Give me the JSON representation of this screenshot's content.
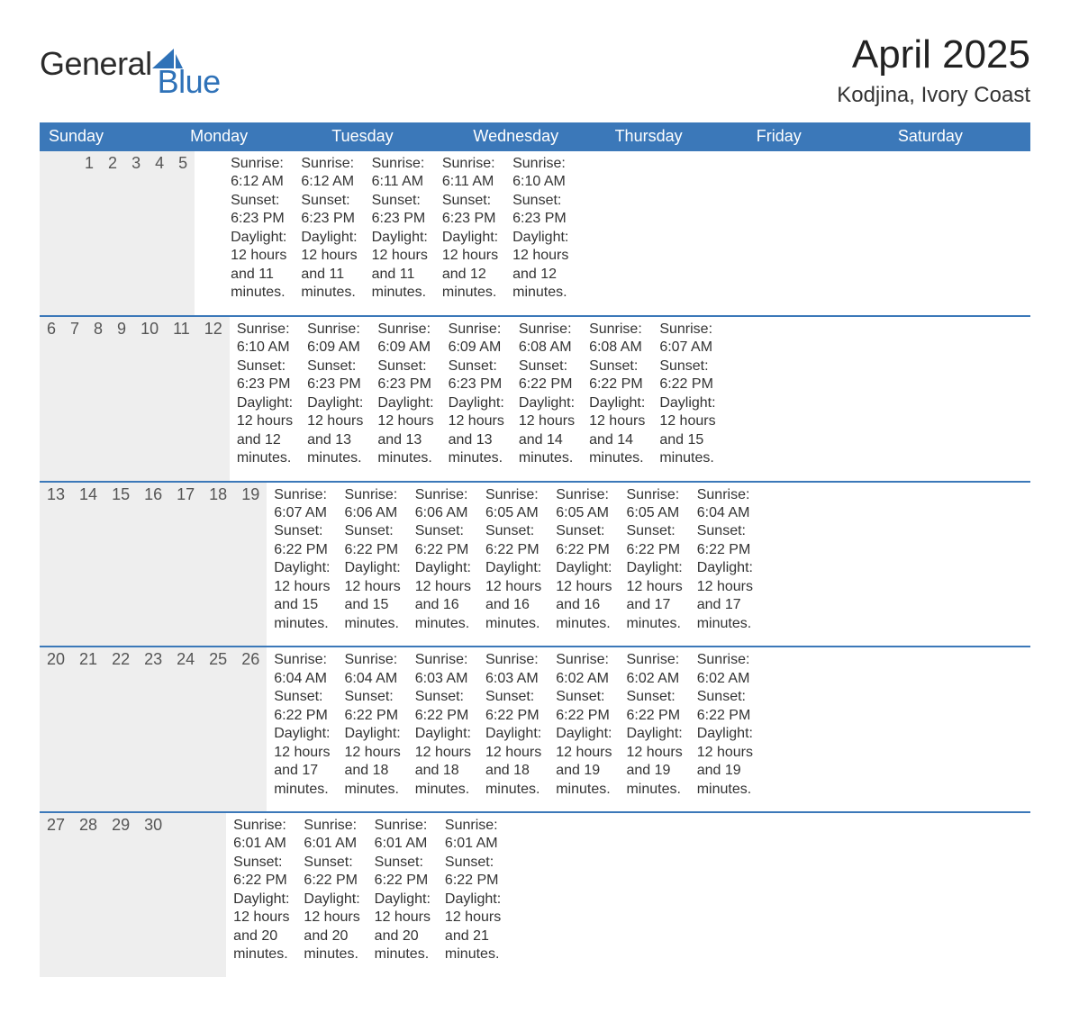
{
  "logo": {
    "part1": "General",
    "part2": "Blue"
  },
  "title": "April 2025",
  "subtitle": "Kodjina, Ivory Coast",
  "colors": {
    "header_blue": "#3b78b9",
    "logo_blue": "#2f72b8",
    "daynum_bg": "#eeeeee",
    "row_sep": "#3b78b9",
    "text": "#333333"
  },
  "weekdays": [
    "Sunday",
    "Monday",
    "Tuesday",
    "Wednesday",
    "Thursday",
    "Friday",
    "Saturday"
  ],
  "weeks": [
    [
      null,
      null,
      {
        "n": "1",
        "sunrise": "Sunrise: 6:12 AM",
        "sunset": "Sunset: 6:23 PM",
        "daylight": "Daylight: 12 hours and 11 minutes."
      },
      {
        "n": "2",
        "sunrise": "Sunrise: 6:12 AM",
        "sunset": "Sunset: 6:23 PM",
        "daylight": "Daylight: 12 hours and 11 minutes."
      },
      {
        "n": "3",
        "sunrise": "Sunrise: 6:11 AM",
        "sunset": "Sunset: 6:23 PM",
        "daylight": "Daylight: 12 hours and 11 minutes."
      },
      {
        "n": "4",
        "sunrise": "Sunrise: 6:11 AM",
        "sunset": "Sunset: 6:23 PM",
        "daylight": "Daylight: 12 hours and 12 minutes."
      },
      {
        "n": "5",
        "sunrise": "Sunrise: 6:10 AM",
        "sunset": "Sunset: 6:23 PM",
        "daylight": "Daylight: 12 hours and 12 minutes."
      }
    ],
    [
      {
        "n": "6",
        "sunrise": "Sunrise: 6:10 AM",
        "sunset": "Sunset: 6:23 PM",
        "daylight": "Daylight: 12 hours and 12 minutes."
      },
      {
        "n": "7",
        "sunrise": "Sunrise: 6:09 AM",
        "sunset": "Sunset: 6:23 PM",
        "daylight": "Daylight: 12 hours and 13 minutes."
      },
      {
        "n": "8",
        "sunrise": "Sunrise: 6:09 AM",
        "sunset": "Sunset: 6:23 PM",
        "daylight": "Daylight: 12 hours and 13 minutes."
      },
      {
        "n": "9",
        "sunrise": "Sunrise: 6:09 AM",
        "sunset": "Sunset: 6:23 PM",
        "daylight": "Daylight: 12 hours and 13 minutes."
      },
      {
        "n": "10",
        "sunrise": "Sunrise: 6:08 AM",
        "sunset": "Sunset: 6:22 PM",
        "daylight": "Daylight: 12 hours and 14 minutes."
      },
      {
        "n": "11",
        "sunrise": "Sunrise: 6:08 AM",
        "sunset": "Sunset: 6:22 PM",
        "daylight": "Daylight: 12 hours and 14 minutes."
      },
      {
        "n": "12",
        "sunrise": "Sunrise: 6:07 AM",
        "sunset": "Sunset: 6:22 PM",
        "daylight": "Daylight: 12 hours and 15 minutes."
      }
    ],
    [
      {
        "n": "13",
        "sunrise": "Sunrise: 6:07 AM",
        "sunset": "Sunset: 6:22 PM",
        "daylight": "Daylight: 12 hours and 15 minutes."
      },
      {
        "n": "14",
        "sunrise": "Sunrise: 6:06 AM",
        "sunset": "Sunset: 6:22 PM",
        "daylight": "Daylight: 12 hours and 15 minutes."
      },
      {
        "n": "15",
        "sunrise": "Sunrise: 6:06 AM",
        "sunset": "Sunset: 6:22 PM",
        "daylight": "Daylight: 12 hours and 16 minutes."
      },
      {
        "n": "16",
        "sunrise": "Sunrise: 6:05 AM",
        "sunset": "Sunset: 6:22 PM",
        "daylight": "Daylight: 12 hours and 16 minutes."
      },
      {
        "n": "17",
        "sunrise": "Sunrise: 6:05 AM",
        "sunset": "Sunset: 6:22 PM",
        "daylight": "Daylight: 12 hours and 16 minutes."
      },
      {
        "n": "18",
        "sunrise": "Sunrise: 6:05 AM",
        "sunset": "Sunset: 6:22 PM",
        "daylight": "Daylight: 12 hours and 17 minutes."
      },
      {
        "n": "19",
        "sunrise": "Sunrise: 6:04 AM",
        "sunset": "Sunset: 6:22 PM",
        "daylight": "Daylight: 12 hours and 17 minutes."
      }
    ],
    [
      {
        "n": "20",
        "sunrise": "Sunrise: 6:04 AM",
        "sunset": "Sunset: 6:22 PM",
        "daylight": "Daylight: 12 hours and 17 minutes."
      },
      {
        "n": "21",
        "sunrise": "Sunrise: 6:04 AM",
        "sunset": "Sunset: 6:22 PM",
        "daylight": "Daylight: 12 hours and 18 minutes."
      },
      {
        "n": "22",
        "sunrise": "Sunrise: 6:03 AM",
        "sunset": "Sunset: 6:22 PM",
        "daylight": "Daylight: 12 hours and 18 minutes."
      },
      {
        "n": "23",
        "sunrise": "Sunrise: 6:03 AM",
        "sunset": "Sunset: 6:22 PM",
        "daylight": "Daylight: 12 hours and 18 minutes."
      },
      {
        "n": "24",
        "sunrise": "Sunrise: 6:02 AM",
        "sunset": "Sunset: 6:22 PM",
        "daylight": "Daylight: 12 hours and 19 minutes."
      },
      {
        "n": "25",
        "sunrise": "Sunrise: 6:02 AM",
        "sunset": "Sunset: 6:22 PM",
        "daylight": "Daylight: 12 hours and 19 minutes."
      },
      {
        "n": "26",
        "sunrise": "Sunrise: 6:02 AM",
        "sunset": "Sunset: 6:22 PM",
        "daylight": "Daylight: 12 hours and 19 minutes."
      }
    ],
    [
      {
        "n": "27",
        "sunrise": "Sunrise: 6:01 AM",
        "sunset": "Sunset: 6:22 PM",
        "daylight": "Daylight: 12 hours and 20 minutes."
      },
      {
        "n": "28",
        "sunrise": "Sunrise: 6:01 AM",
        "sunset": "Sunset: 6:22 PM",
        "daylight": "Daylight: 12 hours and 20 minutes."
      },
      {
        "n": "29",
        "sunrise": "Sunrise: 6:01 AM",
        "sunset": "Sunset: 6:22 PM",
        "daylight": "Daylight: 12 hours and 20 minutes."
      },
      {
        "n": "30",
        "sunrise": "Sunrise: 6:01 AM",
        "sunset": "Sunset: 6:22 PM",
        "daylight": "Daylight: 12 hours and 21 minutes."
      },
      null,
      null,
      null
    ]
  ]
}
